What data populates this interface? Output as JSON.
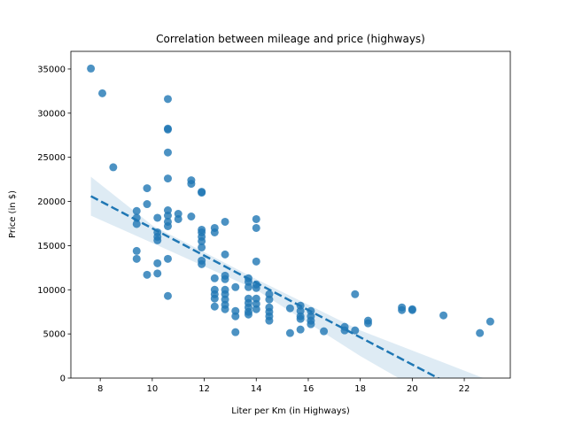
{
  "chart_data": {
    "type": "scatter",
    "title": "Correlation between mileage and price (highways)",
    "x_label": "Liter per Km (in Highways)",
    "y_label": "Price (in $)",
    "xlim": [
      6.87,
      23.77
    ],
    "ylim": [
      0,
      37000
    ],
    "xticks": [
      8,
      10,
      12,
      14,
      16,
      18,
      20,
      22
    ],
    "yticks": [
      0,
      5000,
      10000,
      15000,
      20000,
      25000,
      30000,
      35000
    ],
    "color": "#1f77b4",
    "ci_color": "#1f77b4",
    "x": [
      7.64,
      8.08,
      8.5,
      9.4,
      9.4,
      9.4,
      9.4,
      9.4,
      9.8,
      9.8,
      9.8,
      10.2,
      10.2,
      10.2,
      10.2,
      10.2,
      10.2,
      10.6,
      10.6,
      10.6,
      10.6,
      10.6,
      10.6,
      10.6,
      10.6,
      10.6,
      10.6,
      10.6,
      11.0,
      11.0,
      11.5,
      11.5,
      11.5,
      11.9,
      11.9,
      11.9,
      11.9,
      11.9,
      11.9,
      11.9,
      11.9,
      11.9,
      12.4,
      12.4,
      12.4,
      12.4,
      12.4,
      12.4,
      12.4,
      12.8,
      12.8,
      12.8,
      12.8,
      12.8,
      12.8,
      12.8,
      12.8,
      12.8,
      13.2,
      13.2,
      13.2,
      13.2,
      13.7,
      13.7,
      13.7,
      13.7,
      13.7,
      13.7,
      13.7,
      13.7,
      14.0,
      14.0,
      14.0,
      14.0,
      14.0,
      14.0,
      14.0,
      14.0,
      14.5,
      14.5,
      14.5,
      14.5,
      14.5,
      14.5,
      15.3,
      15.3,
      15.7,
      15.7,
      15.7,
      15.7,
      15.7,
      16.1,
      16.1,
      16.1,
      16.1,
      16.6,
      17.4,
      17.4,
      17.8,
      17.8,
      18.3,
      18.3,
      19.6,
      19.6,
      20.0,
      20.0,
      21.2,
      22.6,
      23.0
    ],
    "series": [
      {
        "values": [
          35056,
          32250,
          23875,
          18920,
          18150,
          17450,
          14400,
          13500,
          21500,
          19700,
          11700,
          18150,
          16500,
          16000,
          15600,
          13000,
          11850,
          31600,
          28250,
          28150,
          25550,
          22600,
          19000,
          18400,
          17700,
          17200,
          13500,
          9300,
          18600,
          18000,
          22400,
          22000,
          18300,
          21100,
          21000,
          16800,
          16500,
          16000,
          15500,
          14800,
          13300,
          12900,
          17000,
          16500,
          11300,
          10000,
          9500,
          9000,
          8100,
          17700,
          14000,
          11600,
          11200,
          10000,
          9500,
          8900,
          8300,
          7800,
          10300,
          7600,
          7000,
          5200,
          11300,
          10900,
          10300,
          9000,
          8500,
          8000,
          7500,
          7200,
          18000,
          17000,
          13200,
          10600,
          10200,
          9000,
          8400,
          7800,
          9500,
          8900,
          8000,
          7500,
          7000,
          6500,
          7900,
          5100,
          8200,
          7600,
          7000,
          6700,
          5500,
          7600,
          7000,
          6500,
          6100,
          5300,
          5800,
          5400,
          9500,
          5400,
          6500,
          6200,
          8000,
          7700,
          7800,
          7700,
          7100,
          5100,
          6400
        ]
      }
    ],
    "regression_x": [
      7.64,
      23.0
    ],
    "regression_y": [
      20600,
      -3100
    ],
    "ci_x": [
      7.64,
      10,
      14,
      18,
      23
    ],
    "ci_upper": [
      22800,
      17300,
      11200,
      5400,
      -300
    ],
    "ci_lower": [
      18400,
      15300,
      10000,
      2500,
      -6000
    ]
  }
}
